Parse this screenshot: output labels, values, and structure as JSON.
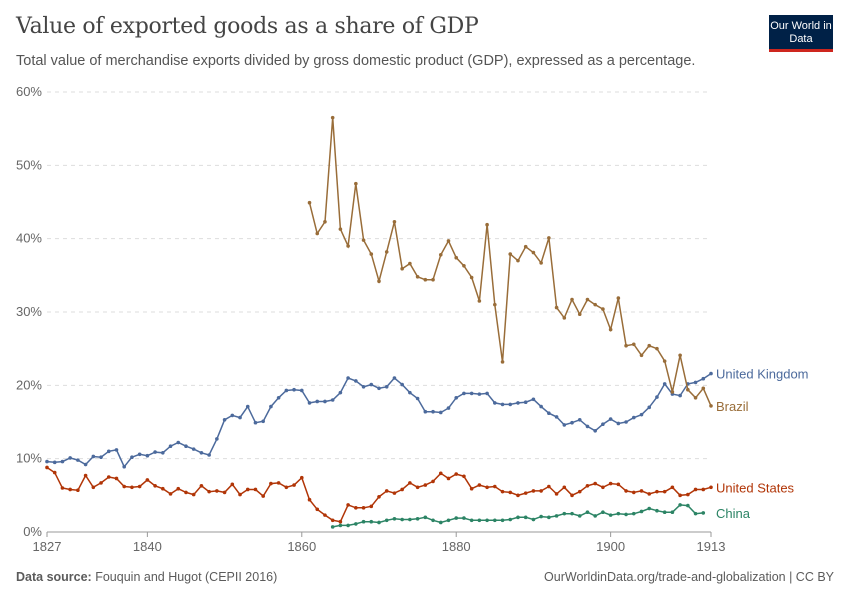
{
  "header": {
    "title": "Value of exported goods as a share of GDP",
    "subtitle": "Total value of merchandise exports divided by gross domestic product (GDP), expressed as a percentage.",
    "logo": "Our World in Data"
  },
  "footer": {
    "source_label": "Data source:",
    "source": "Fouquin and Hugot (CEPII 2016)",
    "url_license": "OurWorldinData.org/trade-and-globalization | CC BY"
  },
  "chart_data": {
    "type": "line",
    "title": "Value of exported goods as a share of GDP",
    "xlabel": "",
    "ylabel": "",
    "ylim": [
      0,
      60
    ],
    "y_ticks": [
      "0%",
      "10%",
      "20%",
      "30%",
      "40%",
      "50%",
      "60%"
    ],
    "y_tick_values": [
      0,
      10,
      20,
      30,
      40,
      50,
      60
    ],
    "x_ticks": [
      "1827",
      "1840",
      "1860",
      "1880",
      "1900",
      "1913"
    ],
    "x_tick_values": [
      1827,
      1840,
      1860,
      1880,
      1900,
      1913
    ],
    "grid": "horizontal dashed",
    "legend": "line-end labels",
    "x": [
      1827,
      1828,
      1829,
      1830,
      1831,
      1832,
      1833,
      1834,
      1835,
      1836,
      1837,
      1838,
      1839,
      1840,
      1841,
      1842,
      1843,
      1844,
      1845,
      1846,
      1847,
      1848,
      1849,
      1850,
      1851,
      1852,
      1853,
      1854,
      1855,
      1856,
      1857,
      1858,
      1859,
      1860,
      1861,
      1862,
      1863,
      1864,
      1865,
      1866,
      1867,
      1868,
      1869,
      1870,
      1871,
      1872,
      1873,
      1874,
      1875,
      1876,
      1877,
      1878,
      1879,
      1880,
      1881,
      1882,
      1883,
      1884,
      1885,
      1886,
      1887,
      1888,
      1889,
      1890,
      1891,
      1892,
      1893,
      1894,
      1895,
      1896,
      1897,
      1898,
      1899,
      1900,
      1901,
      1902,
      1903,
      1904,
      1905,
      1906,
      1907,
      1908,
      1909,
      1910,
      1911,
      1912,
      1913
    ],
    "series": [
      {
        "name": "United Kingdom",
        "color": "#4c6a9c",
        "values": [
          9.6,
          9.5,
          9.6,
          10.1,
          9.8,
          9.2,
          10.3,
          10.2,
          11.0,
          11.2,
          8.9,
          10.2,
          10.6,
          10.4,
          10.9,
          10.8,
          11.7,
          12.2,
          11.7,
          11.3,
          10.8,
          10.5,
          12.7,
          15.3,
          15.9,
          15.6,
          17.1,
          14.9,
          15.1,
          17.1,
          18.3,
          19.3,
          19.4,
          19.3,
          17.6,
          17.8,
          17.8,
          18.0,
          19.0,
          21.0,
          20.6,
          19.8,
          20.1,
          19.6,
          19.8,
          21.0,
          20.1,
          19.0,
          18.2,
          16.4,
          16.4,
          16.3,
          16.9,
          18.3,
          18.9,
          18.9,
          18.8,
          18.9,
          17.6,
          17.4,
          17.4,
          17.6,
          17.7,
          18.1,
          17.1,
          16.2,
          15.7,
          14.6,
          14.9,
          15.3,
          14.4,
          13.8,
          14.7,
          15.4,
          14.8,
          15.0,
          15.6,
          16.0,
          17.0,
          18.4,
          20.2,
          18.8,
          18.6,
          20.2,
          20.4,
          20.9,
          21.6
        ]
      },
      {
        "name": "Brazil",
        "color": "#996d39",
        "values": [
          null,
          null,
          null,
          null,
          null,
          null,
          null,
          null,
          null,
          null,
          null,
          null,
          null,
          null,
          null,
          null,
          null,
          null,
          null,
          null,
          null,
          null,
          null,
          null,
          null,
          null,
          null,
          null,
          null,
          null,
          null,
          null,
          null,
          null,
          44.9,
          40.7,
          42.3,
          56.5,
          41.3,
          39.0,
          47.5,
          39.8,
          37.9,
          34.2,
          38.2,
          42.3,
          35.9,
          36.6,
          34.8,
          34.4,
          34.4,
          37.8,
          39.7,
          37.4,
          36.3,
          34.7,
          31.5,
          41.9,
          31.0,
          23.2,
          37.9,
          37.0,
          38.9,
          38.1,
          36.7,
          40.1,
          30.6,
          29.2,
          31.7,
          29.7,
          31.7,
          31.0,
          30.4,
          27.6,
          31.9,
          25.4,
          25.6,
          24.1,
          25.4,
          25.0,
          23.3,
          19.1,
          24.1,
          19.4,
          18.3,
          19.6,
          17.2
        ]
      },
      {
        "name": "United States",
        "color": "#b13507",
        "values": [
          8.8,
          8.1,
          6.0,
          5.8,
          5.7,
          7.7,
          6.1,
          6.7,
          7.5,
          7.3,
          6.2,
          6.1,
          6.2,
          7.1,
          6.3,
          5.9,
          5.2,
          5.9,
          5.4,
          5.1,
          6.3,
          5.5,
          5.6,
          5.4,
          6.5,
          5.1,
          5.8,
          5.8,
          4.9,
          6.6,
          6.7,
          6.1,
          6.4,
          7.4,
          4.4,
          3.1,
          2.3,
          1.6,
          1.4,
          3.7,
          3.3,
          3.3,
          3.5,
          4.8,
          5.6,
          5.3,
          5.8,
          6.7,
          6.1,
          6.4,
          6.9,
          8.0,
          7.3,
          7.9,
          7.6,
          5.9,
          6.4,
          6.1,
          6.2,
          5.5,
          5.4,
          5.0,
          5.3,
          5.6,
          5.6,
          6.2,
          5.2,
          6.1,
          5.0,
          5.5,
          6.3,
          6.6,
          6.1,
          6.6,
          6.5,
          5.6,
          5.4,
          5.6,
          5.2,
          5.5,
          5.5,
          6.1,
          5.0,
          5.1,
          5.8,
          5.8,
          6.1
        ]
      },
      {
        "name": "China",
        "color": "#2c8465",
        "values": [
          null,
          null,
          null,
          null,
          null,
          null,
          null,
          null,
          null,
          null,
          null,
          null,
          null,
          null,
          null,
          null,
          null,
          null,
          null,
          null,
          null,
          null,
          null,
          null,
          null,
          null,
          null,
          null,
          null,
          null,
          null,
          null,
          null,
          null,
          null,
          null,
          null,
          0.7,
          0.9,
          0.9,
          1.1,
          1.4,
          1.4,
          1.3,
          1.6,
          1.8,
          1.7,
          1.7,
          1.8,
          2.0,
          1.6,
          1.3,
          1.6,
          1.9,
          1.9,
          1.6,
          1.6,
          1.6,
          1.6,
          1.6,
          1.7,
          2.0,
          2.0,
          1.7,
          2.1,
          2.0,
          2.2,
          2.5,
          2.5,
          2.2,
          2.7,
          2.2,
          2.7,
          2.3,
          2.5,
          2.4,
          2.5,
          2.8,
          3.2,
          2.9,
          2.7,
          2.7,
          3.7,
          3.6,
          2.5,
          2.6,
          null
        ]
      }
    ]
  }
}
